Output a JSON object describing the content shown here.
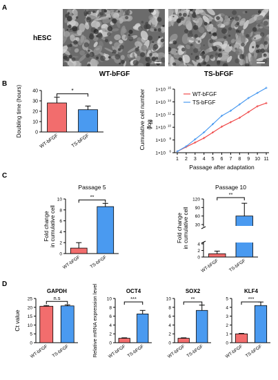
{
  "panels": {
    "a": "A",
    "b": "B",
    "c": "C",
    "d": "D"
  },
  "colors": {
    "wt": "#f26d6d",
    "ts": "#4a9af0",
    "wt_line": "#f04a4a",
    "ts_line": "#4a9af0"
  },
  "panel_a": {
    "row_label": "hESC",
    "captions": [
      "WT-bFGF",
      "TS-bFGF"
    ]
  },
  "chart_data": [
    {
      "id": "b1",
      "type": "bar",
      "ylabel": "Doubling time (hours)",
      "ylim": [
        0,
        40
      ],
      "yticks": [
        "0",
        "10",
        "20",
        "30",
        "40"
      ],
      "categories": [
        "WT-bFGF",
        "TS-bFGF"
      ],
      "values": [
        28,
        21.5
      ],
      "errors": [
        5.5,
        3.5
      ],
      "significance": "*"
    },
    {
      "id": "b2",
      "type": "line",
      "ylabel": "Cumulative cell number (log10)",
      "ylabel_main": "Cumulative cell number",
      "ylabel_sub": "(log",
      "ylabel_base": "10",
      "xlabel": "Passage after adaptation",
      "x": [
        1,
        2,
        3,
        4,
        5,
        6,
        7,
        8,
        9,
        10,
        11
      ],
      "ytick_exponents": [
        "6",
        "8",
        "10",
        "12",
        "14",
        "16"
      ],
      "ylim_exp": [
        6,
        16
      ],
      "series": [
        {
          "name": "WT-bFGF",
          "values": [
            6.2,
            6.9,
            7.6,
            8.3,
            9.2,
            10.1,
            10.8,
            11.5,
            12.4,
            13.3,
            13.8
          ]
        },
        {
          "name": "TS-bFGF",
          "values": [
            6.2,
            7.0,
            8.1,
            9.2,
            10.5,
            11.8,
            12.6,
            13.6,
            14.6,
            15.4,
            16.2
          ]
        }
      ]
    },
    {
      "id": "c1",
      "type": "bar",
      "title": "Passage 5",
      "ylabel": "Fold change in cumulative cell",
      "ylabel_line1": "Fold change",
      "ylabel_line2": "in cumulative cell",
      "ylim": [
        0,
        10
      ],
      "yticks": [
        "0",
        "2",
        "4",
        "6",
        "8",
        "10"
      ],
      "categories": [
        "WT-bFGF",
        "TS-bFGF"
      ],
      "values": [
        1,
        8.6
      ],
      "errors": [
        1.0,
        0.6
      ],
      "significance": "**"
    },
    {
      "id": "c2",
      "type": "bar",
      "title": "Passage 10",
      "ylabel": "Fold change in cumulative cell",
      "ylabel_line1": "Fold change",
      "ylabel_line2": "in cumulative cell",
      "ylim_lower": [
        0,
        4
      ],
      "ylim_upper": [
        30,
        120
      ],
      "yticks_lower": [
        "0",
        "2",
        "4"
      ],
      "yticks_upper": [
        "30",
        "60",
        "90",
        "120"
      ],
      "categories": [
        "WT-bFGF",
        "TS-bFGF"
      ],
      "values": [
        1,
        60
      ],
      "errors": [
        0.8,
        45
      ],
      "significance": "**"
    },
    {
      "id": "d1",
      "type": "bar",
      "title": "GAPDH",
      "ylabel": "Ct value",
      "ylim": [
        0,
        25
      ],
      "yticks": [
        "0",
        "5",
        "10",
        "15",
        "20",
        "25"
      ],
      "categories": [
        "WT-bFGF",
        "TS-bFGF"
      ],
      "values": [
        20.6,
        20.8
      ],
      "errors": [
        0.4,
        0.6
      ],
      "significance": "n.s"
    },
    {
      "id": "d2",
      "type": "bar",
      "title": "OCT4",
      "ylabel": "Relative mRNA expression level",
      "ylim": [
        0,
        10
      ],
      "yticks": [
        "0",
        "2",
        "4",
        "6",
        "8",
        "10"
      ],
      "categories": [
        "WT-bFGF",
        "TS-bFGF"
      ],
      "values": [
        1,
        6.5
      ],
      "errors": [
        0.1,
        0.8
      ],
      "significance": "***"
    },
    {
      "id": "d3",
      "type": "bar",
      "title": "SOX2",
      "ylim": [
        0,
        10
      ],
      "yticks": [
        "0",
        "2",
        "4",
        "6",
        "8",
        "10"
      ],
      "categories": [
        "WT-bFGF",
        "TS-bFGF"
      ],
      "values": [
        1,
        7.3
      ],
      "errors": [
        0.1,
        1.2
      ],
      "significance": "**"
    },
    {
      "id": "d4",
      "type": "bar",
      "title": "KLF4",
      "ylim": [
        0,
        5
      ],
      "yticks": [
        "0",
        "1",
        "2",
        "3",
        "4",
        "5"
      ],
      "categories": [
        "WT-bFGF",
        "TS-bFGF"
      ],
      "values": [
        1,
        4.2
      ],
      "errors": [
        0.05,
        0.4
      ],
      "significance": "***"
    }
  ]
}
